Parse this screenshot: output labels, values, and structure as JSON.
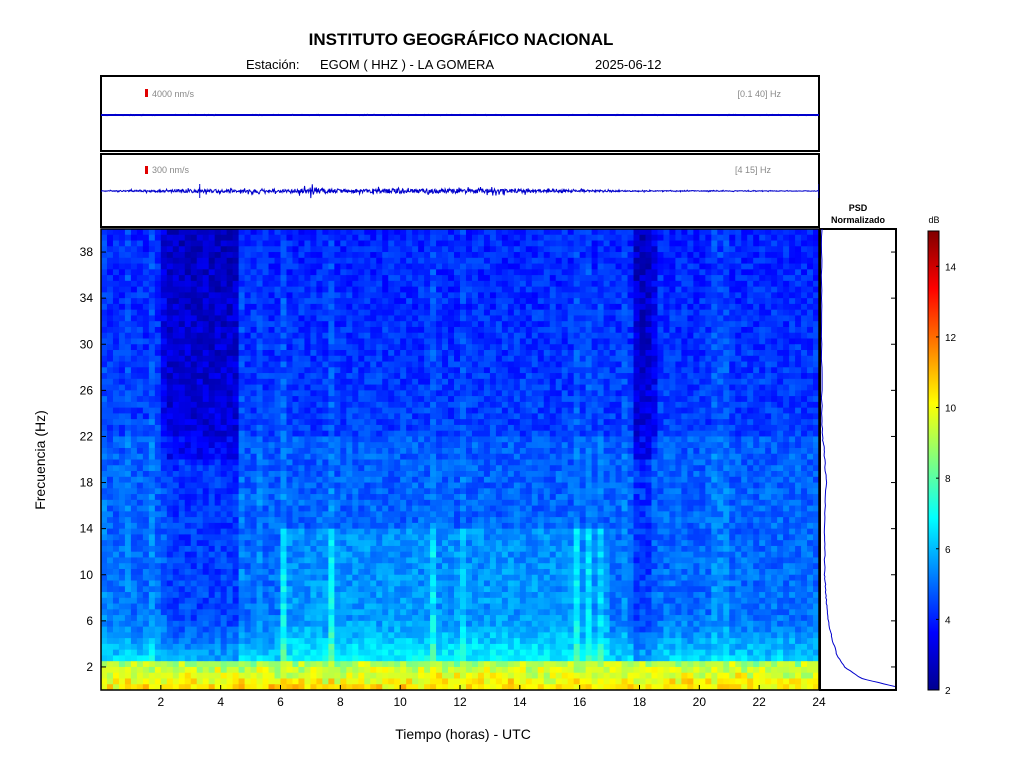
{
  "header": {
    "title": "INSTITUTO GEOGRÁFICO NACIONAL",
    "station_label": "Estación:",
    "station_name": "EGOM ( HHZ ) - LA GOMERA",
    "date": "2025-06-12"
  },
  "chart_data": [
    {
      "type": "line",
      "panel": "seismogram-broadband",
      "scale_label": "4000 nm/s",
      "band_label": "[0.1 40] Hz",
      "description_values": "flat trace, amplitude near zero relative to scale",
      "x_range": [
        0,
        24
      ],
      "activity": [
        [
          0,
          0.01
        ],
        [
          24,
          0.01
        ]
      ],
      "color": "#0000cc"
    },
    {
      "type": "line",
      "panel": "seismogram-filtered",
      "scale_label": "300 nm/s",
      "band_label": "[4 15] Hz",
      "x_range": [
        0,
        24
      ],
      "activity": [
        [
          0,
          0.05
        ],
        [
          3.3,
          0.4
        ],
        [
          6.3,
          0.3
        ],
        [
          7.0,
          0.9
        ],
        [
          7.5,
          0.6
        ],
        [
          8.4,
          0.35
        ],
        [
          10.0,
          0.55
        ],
        [
          10.5,
          0.45
        ],
        [
          12.3,
          0.55
        ],
        [
          12.8,
          0.5
        ],
        [
          15.0,
          0.35
        ],
        [
          18.0,
          0.1
        ],
        [
          24,
          0.05
        ]
      ],
      "color": "#0000cc"
    },
    {
      "type": "heatmap",
      "panel": "spectrogram",
      "xlabel": "Tiempo (horas) - UTC",
      "ylabel": "Frecuencia  (Hz)",
      "xlim": [
        0,
        24
      ],
      "ylim": [
        0,
        40
      ],
      "xticks": [
        2,
        4,
        6,
        8,
        10,
        12,
        14,
        16,
        18,
        20,
        22,
        24
      ],
      "yticks": [
        2,
        6,
        10,
        14,
        18,
        22,
        26,
        30,
        34,
        38
      ],
      "colorbar": {
        "label": "dB",
        "range": [
          2,
          15
        ],
        "ticks": [
          2,
          4,
          6,
          8,
          10,
          12,
          14
        ]
      },
      "features": {
        "low_freq_band_hz": [
          0,
          2.5
        ],
        "low_freq_level_db": 10.5,
        "band_hz_22": 22,
        "quiet_hours": [
          [
            2,
            4.5
          ],
          [
            17.8,
            18.6
          ]
        ],
        "active_hours": [
          [
            6,
            17
          ]
        ]
      }
    },
    {
      "type": "line",
      "panel": "psd-normalized",
      "title": "PSD\nNormalizado",
      "title_line1": "PSD",
      "title_line2": "Normalizado",
      "freq_hz": [
        0.3,
        1,
        2,
        3,
        4,
        5,
        6,
        7,
        8,
        9,
        10,
        12,
        14,
        16,
        18,
        20,
        21,
        22,
        24,
        28,
        32,
        36,
        40
      ],
      "value_norm": [
        1.0,
        0.55,
        0.32,
        0.22,
        0.17,
        0.13,
        0.1,
        0.08,
        0.07,
        0.06,
        0.05,
        0.05,
        0.05,
        0.055,
        0.07,
        0.05,
        0.04,
        0.02,
        0.01,
        0.01,
        0.01,
        0.01,
        0.01
      ]
    }
  ]
}
